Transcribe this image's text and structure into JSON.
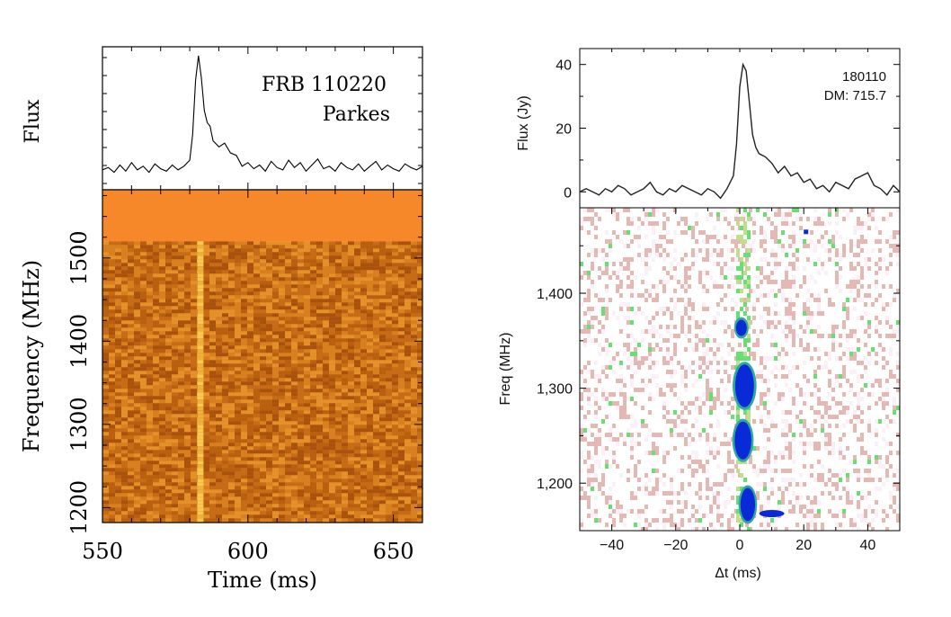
{
  "chart_data": [
    {
      "type": "line",
      "panel": "left-top",
      "ylabel": "Flux",
      "annotation_lines": [
        "FRB 110220",
        "Parkes"
      ],
      "xlim": [
        550,
        660
      ],
      "series": [
        {
          "name": "Flux",
          "x": [
            550,
            552,
            554,
            556,
            558,
            560,
            562,
            564,
            566,
            568,
            570,
            572,
            574,
            576,
            578,
            580,
            581,
            582,
            583,
            584,
            585,
            586,
            587,
            588,
            590,
            592,
            594,
            596,
            598,
            600,
            602,
            604,
            606,
            608,
            610,
            612,
            614,
            616,
            618,
            620,
            622,
            624,
            626,
            628,
            630,
            632,
            634,
            636,
            638,
            640,
            642,
            644,
            646,
            648,
            650,
            652,
            654,
            656,
            658,
            660
          ],
          "y": [
            0.06,
            0.08,
            0.04,
            0.1,
            0.05,
            0.12,
            0.06,
            0.09,
            0.04,
            0.11,
            0.07,
            0.05,
            0.1,
            0.06,
            0.09,
            0.14,
            0.35,
            0.8,
            1.0,
            0.82,
            0.55,
            0.45,
            0.42,
            0.3,
            0.25,
            0.28,
            0.2,
            0.18,
            0.09,
            0.12,
            0.07,
            0.1,
            0.05,
            0.13,
            0.08,
            0.06,
            0.14,
            0.08,
            0.12,
            0.05,
            0.1,
            0.15,
            0.07,
            0.09,
            0.05,
            0.12,
            0.08,
            0.06,
            0.11,
            0.05,
            0.09,
            0.13,
            0.06,
            0.1,
            0.07,
            0.05,
            0.11,
            0.08,
            0.06,
            0.09
          ]
        }
      ]
    },
    {
      "type": "heatmap",
      "panel": "left-bottom",
      "xlabel": "Time (ms)",
      "ylabel": "Frequency (MHz)",
      "xlim": [
        550,
        660
      ],
      "ylim": [
        1182,
        1582
      ],
      "xticks": [
        550,
        600,
        650
      ],
      "xtick_labels": [
        "550",
        "600",
        "650"
      ],
      "yticks": [
        1200,
        1300,
        1400,
        1500
      ],
      "ytick_labels": [
        "1200",
        "1300",
        "1400",
        "1500"
      ],
      "masked_band_mhz": [
        1520,
        1582
      ],
      "burst_time_ms": 583.5,
      "colors": {
        "mask": "#f7882a",
        "dark": "#b05a10",
        "mid": "#d57d1e",
        "bright": "#f8c94e"
      }
    },
    {
      "type": "line",
      "panel": "right-top",
      "ylabel": "Flux (Jy)",
      "annotation_lines": [
        "180110",
        "DM: 715.7"
      ],
      "xlim": [
        -50,
        50
      ],
      "ylim": [
        -5,
        45
      ],
      "yticks": [
        0,
        20,
        40
      ],
      "ytick_labels": [
        "0",
        "20",
        "40"
      ],
      "series": [
        {
          "name": "Flux (Jy)",
          "x": [
            -50,
            -48,
            -46,
            -44,
            -42,
            -40,
            -38,
            -36,
            -34,
            -32,
            -30,
            -28,
            -26,
            -24,
            -22,
            -20,
            -18,
            -16,
            -14,
            -12,
            -10,
            -8,
            -6,
            -4,
            -2,
            -1,
            0,
            1,
            2,
            3,
            4,
            5,
            6,
            8,
            10,
            12,
            14,
            16,
            18,
            20,
            22,
            24,
            26,
            28,
            30,
            32,
            34,
            36,
            38,
            40,
            42,
            44,
            46,
            48,
            50
          ],
          "y": [
            0,
            1,
            0,
            -1,
            1,
            0,
            2,
            1,
            -1,
            0,
            1,
            3,
            0,
            -1,
            1,
            0,
            2,
            1,
            0,
            -1,
            1,
            0,
            -2,
            1,
            5,
            15,
            33,
            40,
            38,
            28,
            18,
            14,
            12,
            11,
            9,
            6,
            8,
            5,
            6,
            3,
            4,
            1,
            2,
            0,
            3,
            2,
            1,
            4,
            5,
            6,
            2,
            1,
            -1,
            2,
            0
          ]
        }
      ]
    },
    {
      "type": "heatmap",
      "panel": "right-bottom",
      "xlabel": "Δt (ms)",
      "ylabel": "Freq (MHz)",
      "xlim": [
        -50,
        50
      ],
      "ylim": [
        1150,
        1490
      ],
      "xticks": [
        -40,
        -20,
        0,
        20,
        40
      ],
      "xtick_labels": [
        "−40",
        "−20",
        "0",
        "20",
        "40"
      ],
      "yticks": [
        1200,
        1300,
        1400
      ],
      "ytick_labels": [
        "1,200",
        "1,300",
        "1,400"
      ],
      "emission_blobs": [
        {
          "t_ms": 0.5,
          "f_lo_mhz": 1355,
          "f_hi_mhz": 1372
        },
        {
          "t_ms": 1.5,
          "f_lo_mhz": 1280,
          "f_hi_mhz": 1325
        },
        {
          "t_ms": 1.0,
          "f_lo_mhz": 1225,
          "f_hi_mhz": 1265
        },
        {
          "t_ms": 2.5,
          "f_lo_mhz": 1160,
          "f_hi_mhz": 1195
        }
      ],
      "colors": {
        "strong": "#0a2ad8",
        "medium": "#2fa8a0",
        "weak": "#66e070",
        "faint": "#e6b8b4",
        "background": "#fbf0f8"
      }
    }
  ]
}
